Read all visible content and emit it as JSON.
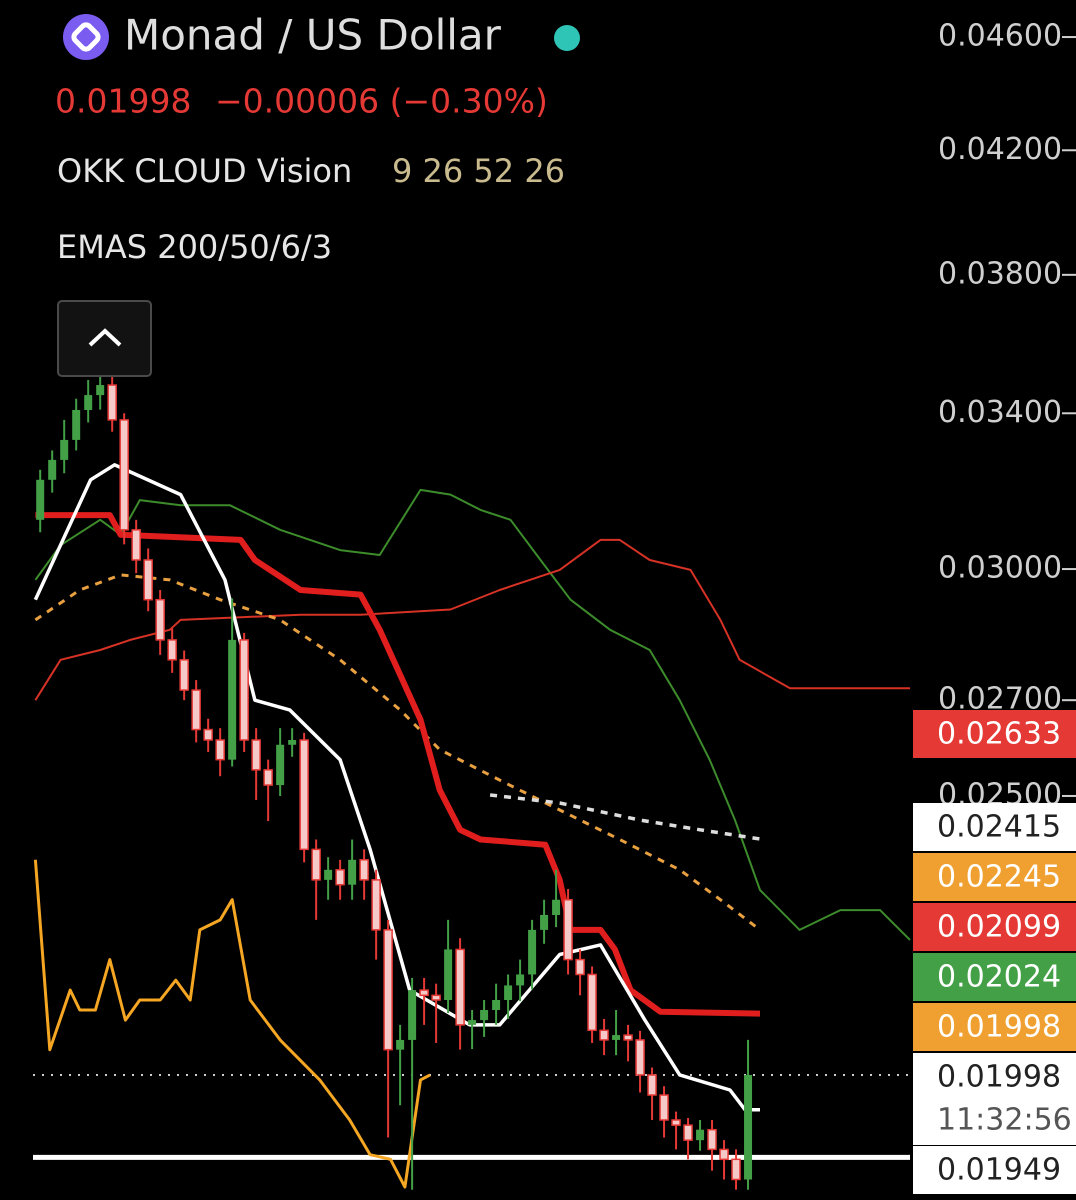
{
  "chart_data": {
    "type": "candlestick",
    "title": "Monad / US Dollar",
    "price_text": "0.01998",
    "change_text": "−0.00006 (−0.30%)",
    "indicators": [
      {
        "name": "OKK CLOUD Vision",
        "params": "9 26 52 26"
      },
      {
        "name": "EMAS 200/50/6/3"
      }
    ],
    "log_scale": true,
    "xlim": [
      -0.6,
      72.5
    ],
    "ylim": [
      0.01807,
      0.04739
    ],
    "yticks": [
      {
        "value": 0.046,
        "label": "0.04600"
      },
      {
        "value": 0.042,
        "label": "0.04200"
      },
      {
        "value": 0.038,
        "label": "0.03800"
      },
      {
        "value": 0.034,
        "label": "0.03400"
      },
      {
        "value": 0.03,
        "label": "0.03000"
      },
      {
        "value": 0.027,
        "label": "0.02700"
      },
      {
        "value": 0.025,
        "label": "0.02500"
      }
    ],
    "up_color": "#43a047",
    "down_color": "#e53935",
    "open": [
      0.03121,
      0.03223,
      0.03275,
      0.03328,
      0.03409,
      0.0345,
      0.03478,
      0.03382,
      0.03096,
      0.03022,
      0.02927,
      0.02834,
      0.02789,
      0.02722,
      0.02637,
      0.02615,
      0.02574,
      0.02834,
      0.02615,
      0.02553,
      0.02522,
      0.02605,
      0.02615,
      0.02395,
      0.02337,
      0.02356,
      0.02328,
      0.02375,
      0.02337,
      0.02245,
      0.02039,
      0.02055,
      0.02139,
      0.0213,
      0.02122,
      0.0221,
      0.0208,
      0.02088,
      0.02105,
      0.02122,
      0.02147,
      0.02166,
      0.02245,
      0.02272,
      0.023,
      0.02192,
      0.02166,
      0.02071,
      0.02055,
      0.02063,
      0.02055,
      0.01998,
      0.01966,
      0.01927,
      0.01919,
      0.01896,
      0.01912,
      0.01882,
      0.01867,
      0.01837
    ],
    "high": [
      0.03249,
      0.033,
      0.03382,
      0.0344,
      0.03492,
      0.0353,
      0.0352,
      0.034,
      0.03121,
      0.0305,
      0.0295,
      0.0286,
      0.0281,
      0.02744,
      0.0266,
      0.0264,
      0.0293,
      0.0285,
      0.0264,
      0.02574,
      0.0264,
      0.0264,
      0.0263,
      0.02414,
      0.0238,
      0.02375,
      0.02414,
      0.02395,
      0.02356,
      0.02263,
      0.0208,
      0.0216,
      0.0216,
      0.0215,
      0.02263,
      0.0223,
      0.02105,
      0.02122,
      0.0215,
      0.02166,
      0.02192,
      0.02263,
      0.023,
      0.02356,
      0.0232,
      0.0221,
      0.0218,
      0.0209,
      0.02105,
      0.0208,
      0.0207,
      0.0201,
      0.0198,
      0.0194,
      0.0193,
      0.01927,
      0.01927,
      0.01896,
      0.01882,
      0.02055
    ],
    "low": [
      0.0309,
      0.0319,
      0.0324,
      0.033,
      0.03375,
      0.0341,
      0.0335,
      0.0306,
      0.0299,
      0.029,
      0.028,
      0.0276,
      0.027,
      0.0261,
      0.0259,
      0.0254,
      0.0256,
      0.0259,
      0.02492,
      0.0245,
      0.025,
      0.0258,
      0.0237,
      0.02263,
      0.023,
      0.023,
      0.023,
      0.023,
      0.02192,
      0.019,
      0.0195,
      0.01822,
      0.0208,
      0.0205,
      0.021,
      0.02039,
      0.0204,
      0.0206,
      0.0208,
      0.0209,
      0.0212,
      0.0214,
      0.0222,
      0.0225,
      0.02166,
      0.0213,
      0.0205,
      0.0203,
      0.0203,
      0.0202,
      0.0197,
      0.01927,
      0.019,
      0.01882,
      0.01867,
      0.0188,
      0.0185,
      0.01837,
      0.01822,
      0.01822
    ],
    "close": [
      0.03223,
      0.03275,
      0.03328,
      0.03409,
      0.0345,
      0.03478,
      0.03382,
      0.03096,
      0.03022,
      0.02927,
      0.02834,
      0.02789,
      0.02722,
      0.02637,
      0.02615,
      0.02574,
      0.02834,
      0.02615,
      0.02553,
      0.02522,
      0.02605,
      0.02615,
      0.02395,
      0.02337,
      0.02356,
      0.02328,
      0.02375,
      0.02337,
      0.02245,
      0.02039,
      0.02055,
      0.02139,
      0.0213,
      0.02122,
      0.0221,
      0.0208,
      0.02088,
      0.02105,
      0.02122,
      0.02147,
      0.02166,
      0.02245,
      0.02272,
      0.023,
      0.02192,
      0.02166,
      0.02071,
      0.02055,
      0.02063,
      0.02055,
      0.01998,
      0.01966,
      0.01927,
      0.01919,
      0.01896,
      0.01912,
      0.01882,
      0.01867,
      0.01837,
      0.01998
    ],
    "lines": [
      {
        "color": "#3d8c2c",
        "dash": false,
        "x": [
          -0.4,
          1.7,
          5,
          6.7,
          8.3,
          11.7,
          15.8,
          20,
          25,
          28.3,
          31.7,
          34.2,
          36.7,
          39.2,
          41.7,
          44.2,
          47.5,
          50.8,
          53.3,
          55.8,
          57.9,
          60,
          63.3,
          66.7,
          70,
          72.5
        ],
        "values": [
          0.02974,
          0.03058,
          0.03121,
          0.03084,
          0.03171,
          0.03158,
          0.03158,
          0.03096,
          0.03046,
          0.03034,
          0.03197,
          0.03185,
          0.03146,
          0.03121,
          0.03022,
          0.02927,
          0.02857,
          0.02811,
          0.027,
          0.02574,
          0.02453,
          0.02318,
          0.02245,
          0.02281,
          0.02281,
          0.02227
        ]
      },
      {
        "color": "#d63225",
        "dash": false,
        "x": [
          -0.4,
          1.7,
          5,
          7.5,
          10.8,
          11.7,
          21.7,
          26.7,
          34.2,
          38.3,
          43.3,
          46.7,
          48.3,
          50.8,
          54.2,
          56.7,
          58.3,
          62.5,
          72.5
        ],
        "values": [
          0.027,
          0.02789,
          0.02811,
          0.02834,
          0.02857,
          0.0288,
          0.02892,
          0.02892,
          0.02904,
          0.0295,
          0.02998,
          0.03071,
          0.03071,
          0.03022,
          0.02998,
          0.0288,
          0.02789,
          0.02726,
          0.02726
        ]
      },
      {
        "color": "#f5a623",
        "dash": false,
        "x": [
          -0.4,
          0.8,
          2.5,
          3.3,
          4.6,
          5.8,
          7.1,
          8.3,
          10,
          11.3,
          12.5,
          13.3,
          15,
          16,
          17.5,
          20,
          23.3,
          25.8,
          27.5,
          29.2,
          30.4,
          31.7,
          32.5
        ],
        "values": [
          0.02375,
          0.02039,
          0.02139,
          0.02105,
          0.02105,
          0.02192,
          0.02088,
          0.02122,
          0.02122,
          0.02156,
          0.02122,
          0.02245,
          0.02263,
          0.023,
          0.02122,
          0.02055,
          0.0199,
          0.01927,
          0.01874,
          0.01867,
          0.01826,
          0.0199,
          0.01998
        ]
      },
      {
        "color": "#e8a040",
        "dash": true,
        "x": [
          -0.4,
          3.3,
          6.7,
          10.8,
          15,
          20,
          25,
          30,
          33.3,
          38.3,
          43.3,
          48.3,
          53.3,
          56.7,
          60
        ],
        "values": [
          0.0288,
          0.0295,
          0.02986,
          0.02974,
          0.02927,
          0.0288,
          0.02789,
          0.02679,
          0.02595,
          0.02532,
          0.02472,
          0.02414,
          0.02356,
          0.023,
          0.02245
        ]
      },
      {
        "color": "#dddddd",
        "dash": true,
        "x": [
          37.5,
          43.3,
          50,
          55,
          60
        ],
        "values": [
          0.02502,
          0.02486,
          0.02452,
          0.02433,
          0.02415
        ]
      },
      {
        "color": "#e01e1e",
        "dash": false,
        "x": [
          -0.4,
          5.8,
          6.7,
          16.7,
          17.9,
          21.7,
          26.7,
          28.3,
          31.7,
          33.3,
          35,
          36.7,
          42.1,
          43.3,
          44.2,
          46.7,
          47.9,
          49.2,
          51.7,
          60
        ],
        "values": [
          0.03133,
          0.03133,
          0.03084,
          0.03071,
          0.03022,
          0.0295,
          0.02939,
          0.02857,
          0.02658,
          0.02512,
          0.02433,
          0.02414,
          0.02404,
          0.02337,
          0.02245,
          0.02245,
          0.0221,
          0.02139,
          0.02102,
          0.02099
        ]
      },
      {
        "color": "#ffffff",
        "dash": false,
        "x": [
          -0.4,
          4.2,
          6.2,
          11.7,
          15.4,
          17.9,
          20.8,
          25,
          27.5,
          30.8,
          35.8,
          38.3,
          43.3,
          46.7,
          50.4,
          53.3,
          57.5,
          58.75,
          60
        ],
        "values": [
          0.02927,
          0.03223,
          0.03262,
          0.03185,
          0.02974,
          0.027,
          0.02679,
          0.02574,
          0.02395,
          0.02139,
          0.0208,
          0.0208,
          0.02201,
          0.02218,
          0.02088,
          0.01998,
          0.01974,
          0.01943,
          0.01943
        ]
      }
    ],
    "hlines": [
      {
        "value": 0.0187,
        "color": "#ffffff",
        "dash": false
      },
      {
        "value": 0.01998,
        "color": "#cccccc",
        "dash": true
      }
    ],
    "price_tags": [
      {
        "label": "0.02633",
        "bg": "#e53935",
        "fg": "#ffffff"
      },
      {
        "label": "0.02415",
        "bg": "#ffffff",
        "fg": "#222222"
      },
      {
        "label": "0.02245",
        "bg": "#f0a030",
        "fg": "#ffffff"
      },
      {
        "label": "0.02099",
        "bg": "#e53935",
        "fg": "#ffffff"
      },
      {
        "label": "0.02024",
        "bg": "#43a047",
        "fg": "#ffffff"
      },
      {
        "label": "0.01998",
        "bg": "#f0a030",
        "fg": "#ffffff"
      },
      {
        "label": "0.01998",
        "time": "11:32:56",
        "bg": "#ffffff",
        "fg": "#222222"
      },
      {
        "label": "0.01949",
        "bg": "#ffffff",
        "fg": "#222222"
      }
    ]
  }
}
